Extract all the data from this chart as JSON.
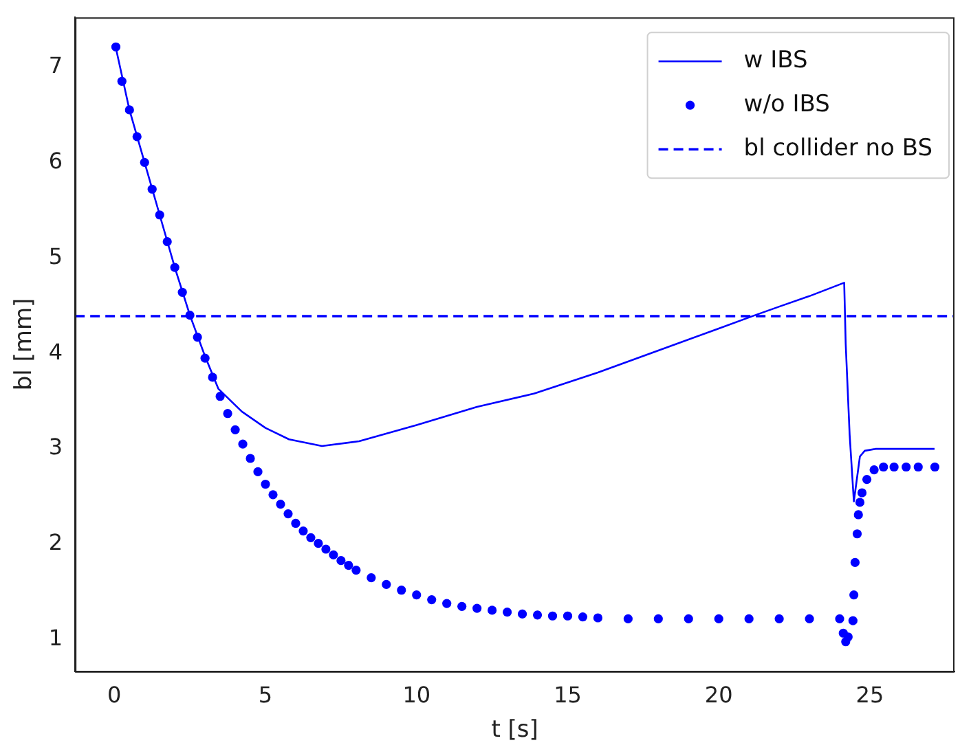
{
  "chart_data": {
    "type": "line",
    "xlabel": "t [s]",
    "ylabel": "bl [mm]",
    "xlim": [
      -1.3,
      27.8
    ],
    "ylim": [
      0.67,
      7.52
    ],
    "xticks": [
      0,
      5,
      10,
      15,
      20,
      25
    ],
    "yticks": [
      1,
      2,
      3,
      4,
      5,
      6,
      7
    ],
    "grid": false,
    "legend": "top right",
    "series": [
      {
        "name": "w IBS",
        "type": "line",
        "color": "#0000ff",
        "x": [
          0.05,
          0.5,
          1,
          1.5,
          2,
          2.5,
          3,
          3.44,
          4.22,
          5,
          5.78,
          6.87,
          8.1,
          10,
          12,
          13.9,
          16,
          18,
          20,
          21.2,
          22,
          23,
          24.15,
          24.2,
          24.33,
          24.47,
          24.67,
          24.83,
          25.2,
          26,
          27.14
        ],
        "values": [
          7.2,
          6.55,
          6.0,
          5.45,
          4.9,
          4.4,
          3.97,
          3.63,
          3.39,
          3.22,
          3.1,
          3.03,
          3.08,
          3.25,
          3.44,
          3.58,
          3.8,
          4.03,
          4.26,
          4.4,
          4.49,
          4.6,
          4.74,
          4.1,
          3.15,
          2.45,
          2.92,
          2.98,
          3.0,
          3.0,
          3.0
        ]
      },
      {
        "name": "w/o IBS",
        "type": "scatter",
        "marker": "circle",
        "color": "#0000ff",
        "x": [
          0.05,
          0.25,
          0.5,
          0.75,
          1,
          1.25,
          1.5,
          1.75,
          2,
          2.25,
          2.5,
          2.75,
          3,
          3.25,
          3.5,
          3.75,
          4,
          4.25,
          4.5,
          4.75,
          5,
          5.25,
          5.5,
          5.75,
          6,
          6.25,
          6.5,
          6.75,
          7,
          7.25,
          7.5,
          7.75,
          8,
          8.5,
          9,
          9.5,
          10,
          10.5,
          11,
          11.5,
          12,
          12.5,
          13,
          13.5,
          14,
          14.5,
          15,
          15.5,
          16,
          17,
          18,
          19,
          20,
          21,
          22,
          23,
          24,
          24.12,
          24.2,
          24.28,
          24.44,
          24.47,
          24.51,
          24.58,
          24.62,
          24.67,
          24.74,
          24.9,
          25.14,
          25.45,
          25.8,
          26.2,
          26.6,
          27.15
        ],
        "values": [
          7.21,
          6.85,
          6.55,
          6.27,
          6.0,
          5.72,
          5.45,
          5.17,
          4.9,
          4.64,
          4.4,
          4.17,
          3.95,
          3.75,
          3.55,
          3.37,
          3.2,
          3.05,
          2.9,
          2.76,
          2.63,
          2.52,
          2.42,
          2.32,
          2.22,
          2.14,
          2.07,
          2.01,
          1.95,
          1.89,
          1.83,
          1.78,
          1.73,
          1.65,
          1.58,
          1.52,
          1.47,
          1.42,
          1.38,
          1.35,
          1.33,
          1.31,
          1.29,
          1.27,
          1.26,
          1.25,
          1.25,
          1.24,
          1.23,
          1.22,
          1.22,
          1.22,
          1.22,
          1.22,
          1.22,
          1.22,
          1.22,
          1.07,
          0.98,
          1.03,
          1.2,
          1.47,
          1.81,
          2.11,
          2.31,
          2.44,
          2.54,
          2.68,
          2.78,
          2.81,
          2.81,
          2.81,
          2.81,
          2.81
        ]
      }
    ],
    "ref_lines": [
      {
        "axis": "y",
        "value": 4.39,
        "label": "bl collider no BS",
        "color": "#0000ff",
        "line_style": "dashed"
      }
    ]
  }
}
